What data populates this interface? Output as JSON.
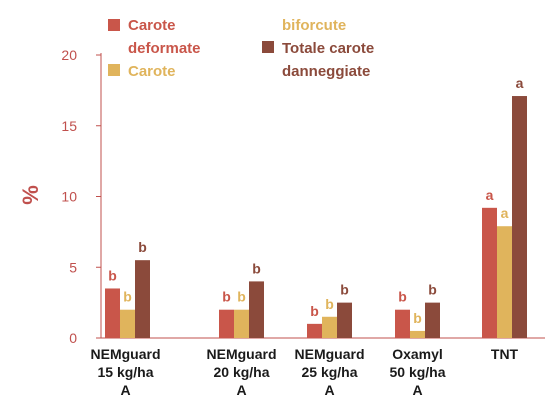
{
  "chart_data": {
    "type": "bar",
    "ylabel": "%",
    "ylim": [
      0,
      20
    ],
    "yticks": [
      0,
      5,
      10,
      15,
      20
    ],
    "grid": false,
    "legend_position": "top",
    "categories": [
      [
        "NEMguard",
        "15 kg/ha",
        "A"
      ],
      [
        "NEMguard",
        "20 kg/ha",
        "A"
      ],
      [
        "NEMguard",
        "25 kg/ha",
        "A"
      ],
      [
        "Oxamyl",
        "50 kg/ha",
        "A"
      ],
      [
        "TNT"
      ]
    ],
    "series": [
      {
        "name_lines": [
          "Carote",
          "deformate"
        ],
        "color": "#c9564a",
        "values": [
          3.5,
          2.0,
          1.0,
          2.0,
          9.2
        ],
        "letters": [
          "b",
          "b",
          "b",
          "b",
          "a"
        ]
      },
      {
        "name_lines": [
          "Carote",
          "biforcute"
        ],
        "color": "#e0b45c",
        "values": [
          2.0,
          2.0,
          1.5,
          0.5,
          7.9
        ],
        "letters": [
          "b",
          "b",
          "b",
          "b",
          "a"
        ]
      },
      {
        "name_lines": [
          "Totale carote",
          "danneggiate"
        ],
        "color": "#8b4a3b",
        "values": [
          5.5,
          4.0,
          2.5,
          2.5,
          17.1
        ],
        "letters": [
          "b",
          "b",
          "b",
          "b",
          "a"
        ]
      }
    ]
  }
}
